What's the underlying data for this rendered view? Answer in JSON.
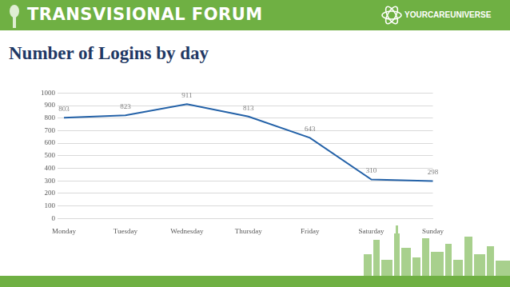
{
  "header": {
    "title": "TRANSVISIONAL FORUM",
    "logo": "YOURCAREUNIVERSE"
  },
  "chart_data": {
    "type": "line",
    "title": "Number of Logins by day",
    "categories": [
      "Monday",
      "Tuesday",
      "Wednesday",
      "Thursday",
      "Friday",
      "Saturday",
      "Sunday"
    ],
    "values": [
      803,
      823,
      911,
      813,
      643,
      310,
      298
    ],
    "color": "#2462a8",
    "ylim": [
      0,
      1000
    ],
    "yticks": [
      0,
      100,
      200,
      300,
      400,
      500,
      600,
      700,
      800,
      900,
      1000
    ],
    "grid": true,
    "data_labels": true
  }
}
